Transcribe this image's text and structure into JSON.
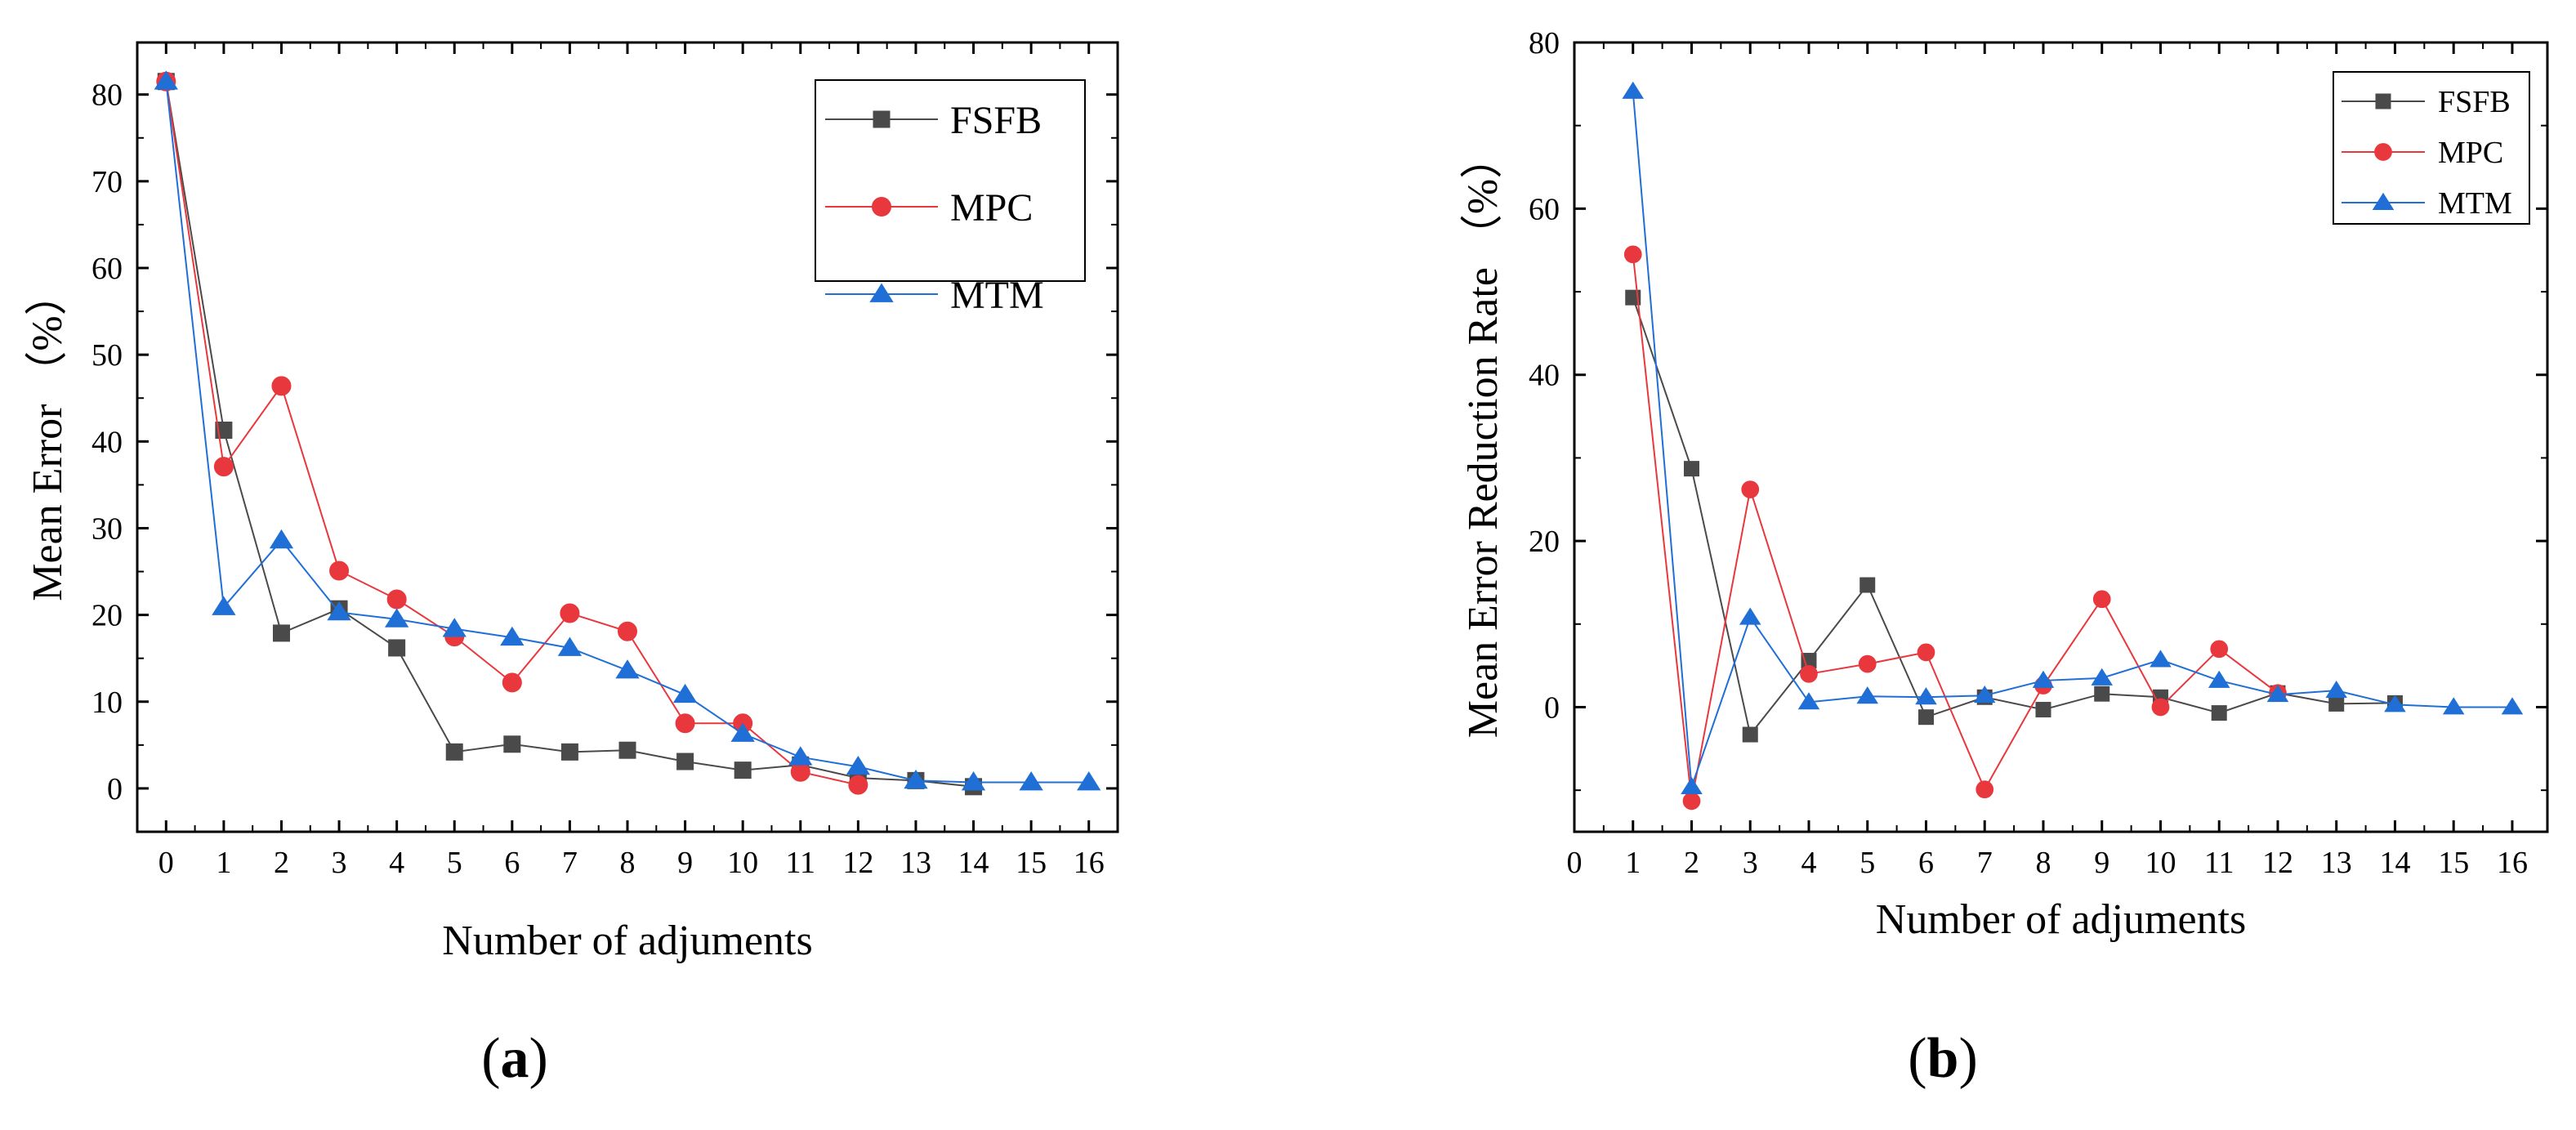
{
  "panel_labels": {
    "a_open": "(",
    "a_letter": "a",
    "a_close": ")",
    "b_open": "(",
    "b_letter": "b",
    "b_close": ")"
  },
  "colors": {
    "FSFB": "#4a4a4a",
    "MPC": "#e8383d",
    "MTM": "#1f6fd6"
  },
  "chart_data": [
    {
      "id": "a",
      "type": "line",
      "title": "",
      "xlabel": "Number of adjuments",
      "ylabel": "Mean Error （%）",
      "xlim": [
        -0.5,
        16.5
      ],
      "ylim": [
        -5,
        86
      ],
      "xticks": [
        0,
        1,
        2,
        3,
        4,
        5,
        6,
        7,
        8,
        9,
        10,
        11,
        12,
        13,
        14,
        15,
        16
      ],
      "yticks": [
        0,
        10,
        20,
        30,
        40,
        50,
        60,
        70,
        80
      ],
      "legend_position": "top-right",
      "series": [
        {
          "name": "FSFB",
          "marker": "square",
          "x": [
            0,
            1,
            2,
            3,
            4,
            5,
            6,
            7,
            8,
            9,
            10,
            11,
            12,
            13,
            14
          ],
          "y": [
            81.5,
            41.3,
            17.9,
            20.7,
            16.2,
            4.2,
            5.1,
            4.2,
            4.4,
            3.1,
            2.1,
            2.7,
            1.2,
            0.9,
            0.2
          ]
        },
        {
          "name": "MPC",
          "marker": "circle",
          "x": [
            0,
            1,
            2,
            3,
            4,
            5,
            6,
            7,
            8,
            9,
            10,
            11,
            12
          ],
          "y": [
            81.5,
            37.1,
            46.4,
            25.1,
            21.8,
            17.5,
            12.2,
            20.2,
            18.1,
            7.5,
            7.5,
            1.9,
            0.4
          ]
        },
        {
          "name": "MTM",
          "marker": "triangle",
          "x": [
            0,
            1,
            2,
            3,
            4,
            5,
            6,
            7,
            8,
            9,
            10,
            11,
            12,
            13,
            14,
            15,
            16
          ],
          "y": [
            81.5,
            20.9,
            28.6,
            20.3,
            19.5,
            18.4,
            17.4,
            16.2,
            13.6,
            10.8,
            6.3,
            3.6,
            2.5,
            0.9,
            0.7,
            0.7,
            0.7
          ]
        }
      ]
    },
    {
      "id": "b",
      "type": "line",
      "title": "",
      "xlabel": "Number of adjuments",
      "ylabel": "Mean Error Reduction Rate （%）",
      "xlim": [
        0,
        16.6
      ],
      "ylim": [
        -15,
        80
      ],
      "xticks": [
        0,
        1,
        2,
        3,
        4,
        5,
        6,
        7,
        8,
        9,
        10,
        11,
        12,
        13,
        14,
        15,
        16
      ],
      "yticks": [
        0,
        20,
        40,
        60,
        80
      ],
      "legend_position": "top-right",
      "series": [
        {
          "name": "FSFB",
          "marker": "square",
          "x": [
            1,
            2,
            3,
            4,
            5,
            6,
            7,
            8,
            9,
            10,
            11,
            12,
            13,
            14
          ],
          "y": [
            49.3,
            28.7,
            -3.3,
            5.6,
            14.7,
            -1.2,
            1.2,
            -0.3,
            1.6,
            1.2,
            -0.7,
            1.7,
            0.4,
            0.5
          ]
        },
        {
          "name": "MPC",
          "marker": "circle",
          "x": [
            1,
            2,
            3,
            4,
            5,
            6,
            7,
            8,
            9,
            10,
            11,
            12
          ],
          "y": [
            54.5,
            -11.3,
            26.2,
            4.0,
            5.2,
            6.6,
            -9.9,
            2.6,
            13.0,
            0.0,
            7.0,
            1.7
          ]
        },
        {
          "name": "MTM",
          "marker": "triangle",
          "x": [
            1,
            2,
            3,
            4,
            5,
            6,
            7,
            8,
            9,
            10,
            11,
            12,
            13,
            14,
            15,
            16
          ],
          "y": [
            74.1,
            -9.6,
            10.8,
            0.6,
            1.3,
            1.2,
            1.4,
            3.2,
            3.5,
            5.7,
            3.2,
            1.5,
            2.0,
            0.3,
            0.0,
            0.0
          ]
        }
      ]
    }
  ]
}
